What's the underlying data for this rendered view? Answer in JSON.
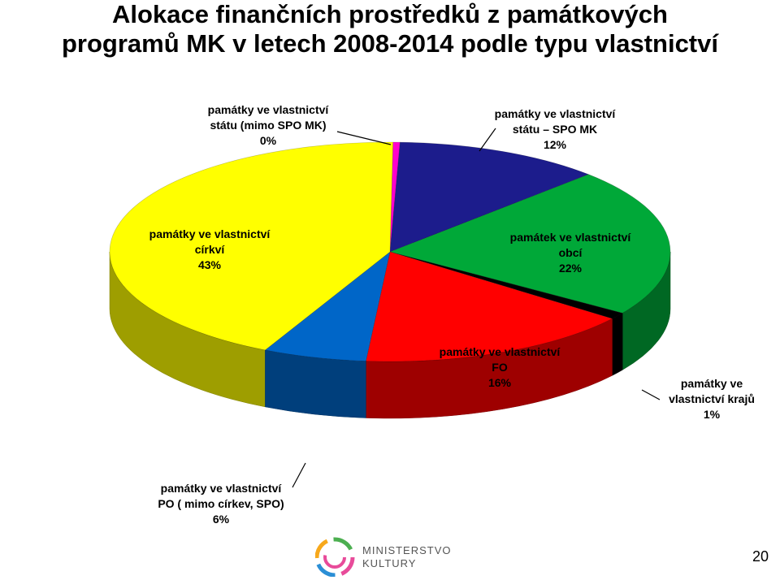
{
  "title_line1": "Alokace finančních prostředků z památkových",
  "title_line2": "programů MK v letech 2008-2014 podle typu vlastnictví",
  "page_number": "20",
  "logo": {
    "line1": "MINISTERSTVO",
    "line2": "KULTURY"
  },
  "chart_data": {
    "type": "pie",
    "title": "",
    "slices": [
      {
        "label_lines": [
          "památky ve vlastnictví",
          "státu (mimo SPO MK)"
        ],
        "value": 0.4,
        "value_label": "0%",
        "color": "#ff00cc"
      },
      {
        "label_lines": [
          "památky ve vlastnictví",
          "státu – SPO MK"
        ],
        "value": 12,
        "value_label": "12%",
        "color": "#1c1c8c"
      },
      {
        "label_lines": [
          "památek ve vlastnictví",
          "obcí"
        ],
        "value": 22,
        "value_label": "22%",
        "color": "#00a838"
      },
      {
        "label_lines": [
          "památky ve",
          "vlastnictví krajů"
        ],
        "value": 1,
        "value_label": "1%",
        "color": "#000000"
      },
      {
        "label_lines": [
          "památky ve vlastnictví",
          "FO"
        ],
        "value": 16,
        "value_label": "16%",
        "color": "#ff0000"
      },
      {
        "label_lines": [
          "památky ve vlastnictví",
          "PO ( mimo  církev, SPO)"
        ],
        "value": 6,
        "value_label": "6%",
        "color": "#0066c8"
      },
      {
        "label_lines": [
          "památky ve vlastnictví",
          "církví"
        ],
        "value": 43,
        "value_label": "43%",
        "color": "#ffff00"
      }
    ]
  }
}
